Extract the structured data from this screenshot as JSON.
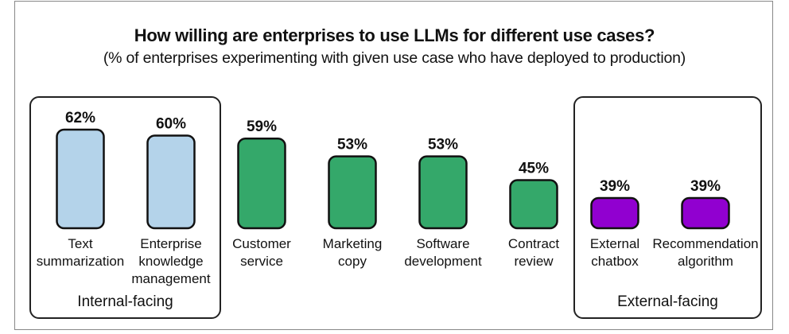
{
  "chart_data": {
    "type": "bar",
    "title": "How willing are enterprises to use LLMs for different use cases?",
    "subtitle": "(% of enterprises experimenting with given use case who have deployed to production)",
    "categories": [
      [
        "Text",
        "summarization"
      ],
      [
        "Enterprise",
        "knowledge",
        "management"
      ],
      [
        "Customer",
        "service"
      ],
      [
        "Marketing",
        "copy"
      ],
      [
        "Software",
        "development"
      ],
      [
        "Contract",
        "review"
      ],
      [
        "External",
        "chatbox"
      ],
      [
        "Recommendation",
        "algorithm"
      ]
    ],
    "values": [
      62,
      60,
      59,
      53,
      53,
      45,
      39,
      39
    ],
    "data_labels": [
      "62%",
      "60%",
      "59%",
      "53%",
      "53%",
      "45%",
      "39%",
      "39%"
    ],
    "bar_colors": [
      "#b4d3ea",
      "#b4d3ea",
      "#34a86a",
      "#34a86a",
      "#34a86a",
      "#34a86a",
      "#9100d0",
      "#9100d0"
    ],
    "groups": [
      {
        "label": "Internal-facing",
        "members": [
          0,
          1
        ]
      },
      {
        "label": "External-facing",
        "members": [
          6,
          7
        ]
      }
    ],
    "grid": false,
    "legend": "none"
  }
}
